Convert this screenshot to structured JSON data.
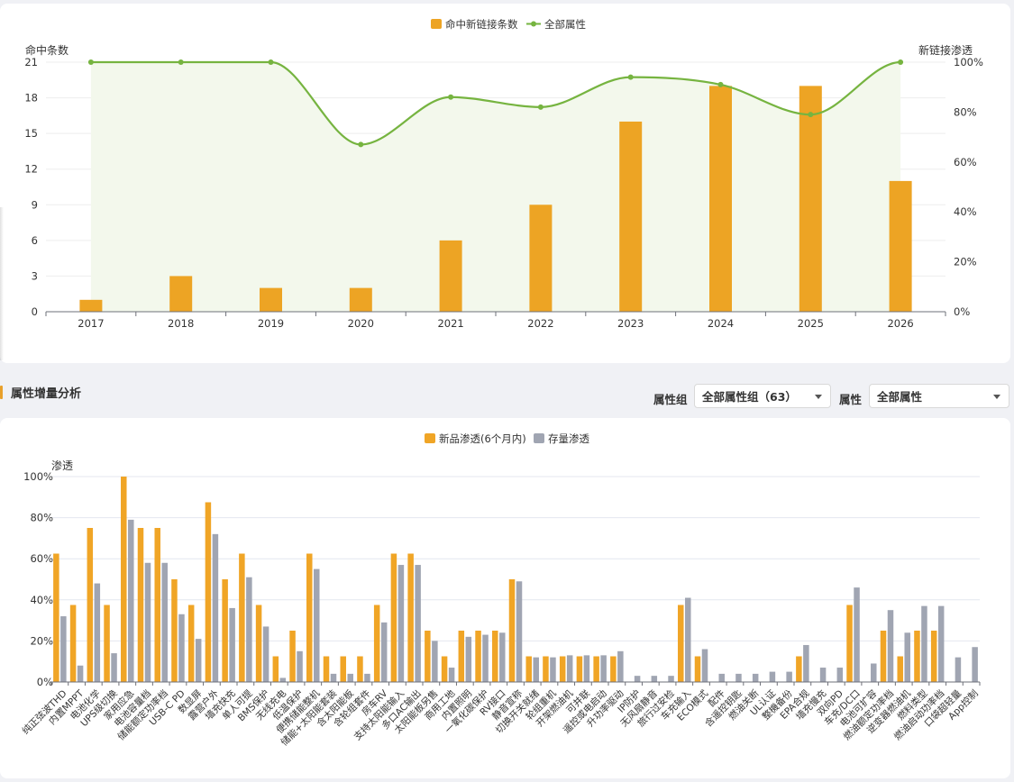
{
  "top_chart": {
    "legend": {
      "bar_label": "命中新链接条数",
      "line_label": "全部属性"
    },
    "y_left_label": "命中条数",
    "y_right_label": "新链接渗透",
    "colors": {
      "bar": "#eda424",
      "line": "#76b440",
      "area": "#f3f8ec"
    }
  },
  "section": {
    "title": "属性增量分析",
    "group_label": "属性组",
    "group_value": "全部属性组（63）",
    "attr_label": "属性",
    "attr_value": "全部属性"
  },
  "bottom_chart": {
    "legend": {
      "new_label": "新品渗透(6个月内)",
      "stock_label": "存量渗透"
    },
    "y_label": "渗透",
    "colors": {
      "new": "#f0a526",
      "stock": "#a0a5b2"
    }
  },
  "chart_data": [
    {
      "type": "bar",
      "categories": [
        "2017",
        "2018",
        "2019",
        "2020",
        "2021",
        "2022",
        "2023",
        "2024",
        "2025",
        "2026"
      ],
      "series": [
        {
          "name": "命中新链接条数",
          "type": "bar",
          "axis": "left",
          "values": [
            1,
            3,
            2,
            2,
            6,
            9,
            16,
            19,
            19,
            11
          ]
        },
        {
          "name": "全部属性",
          "type": "line",
          "axis": "right",
          "values": [
            100,
            100,
            100,
            67,
            86,
            82,
            94,
            91,
            79,
            100
          ]
        }
      ],
      "ylim_left": [
        0,
        21
      ],
      "yticks_left": [
        0,
        3,
        6,
        9,
        12,
        15,
        18,
        21
      ],
      "ylim_right": [
        0,
        100
      ],
      "yticks_right": [
        "0%",
        "20%",
        "40%",
        "60%",
        "80%",
        "100%"
      ],
      "ylabel_left": "命中条数",
      "ylabel_right": "新链接渗透",
      "legend_position": "top-center",
      "grid": true
    },
    {
      "type": "bar",
      "categories": [
        "纯正弦波THD",
        "内置MPPT",
        "电池化学",
        "UPS级切换",
        "家用应急",
        "电池容量档",
        "储能额定功率档",
        "USB-C PD",
        "数显屏",
        "露营户外",
        "墙充快充",
        "单人可提",
        "BMS保护",
        "无线充电",
        "低温保护",
        "便携储能整机",
        "储能+太阳能套装",
        "含太阳能板",
        "含轮组套件",
        "房车RV",
        "支持太阳能输入",
        "多口AC输出",
        "太阳能板另售",
        "商用工地",
        "内置照明",
        "一氧化碳保护",
        "RV接口",
        "静音宣称",
        "切换开关就绪",
        "轮组重机",
        "开架燃油机",
        "可并联",
        "遥控或电启动",
        "升功率驱动",
        "IP防护",
        "无风扇静音",
        "旅行过安检",
        "车充输入",
        "ECO模式",
        "配件",
        "含遥控钥匙",
        "燃油关断",
        "UL认证",
        "整機备份",
        "EPA合规",
        "墙充慢充",
        "双向PD",
        "车充/DC口",
        "电池可扩容",
        "燃油额定功率档",
        "逆变器燃油机",
        "燃料类型",
        "燃油启动功率档",
        "口袋超轻量",
        "App控制"
      ],
      "series": [
        {
          "name": "新品渗透(6个月内)",
          "values": [
            62.5,
            37.5,
            75,
            37.5,
            100,
            75,
            75,
            50,
            37.5,
            87.5,
            50,
            62.5,
            37.5,
            12.5,
            25,
            62.5,
            12.5,
            12.5,
            12.5,
            37.5,
            62.5,
            62.5,
            25,
            12.5,
            25,
            25,
            25,
            50,
            12.5,
            12.5,
            12.5,
            12.5,
            12.5,
            12.5,
            0,
            0,
            0,
            37.5,
            12.5,
            0,
            0,
            0,
            0,
            0,
            12.5,
            0,
            0,
            37.5,
            0,
            25,
            12.5,
            25,
            25,
            0,
            0
          ]
        },
        {
          "name": "存量渗透",
          "values": [
            32,
            8,
            48,
            14,
            79,
            58,
            58,
            33,
            21,
            72,
            36,
            51,
            27,
            2,
            15,
            55,
            4,
            4,
            4,
            29,
            57,
            57,
            20,
            7,
            22,
            23,
            24,
            49,
            12,
            12,
            13,
            13,
            13,
            15,
            3,
            3,
            3,
            41,
            16,
            4,
            4,
            4,
            5,
            5,
            18,
            7,
            7,
            46,
            9,
            35,
            24,
            37,
            37,
            12,
            17
          ]
        }
      ],
      "ylim": [
        0,
        100
      ],
      "yticks": [
        "0%",
        "20%",
        "40%",
        "60%",
        "80%",
        "100%"
      ],
      "ylabel": "渗透",
      "legend_position": "top-center",
      "grid": true
    }
  ]
}
